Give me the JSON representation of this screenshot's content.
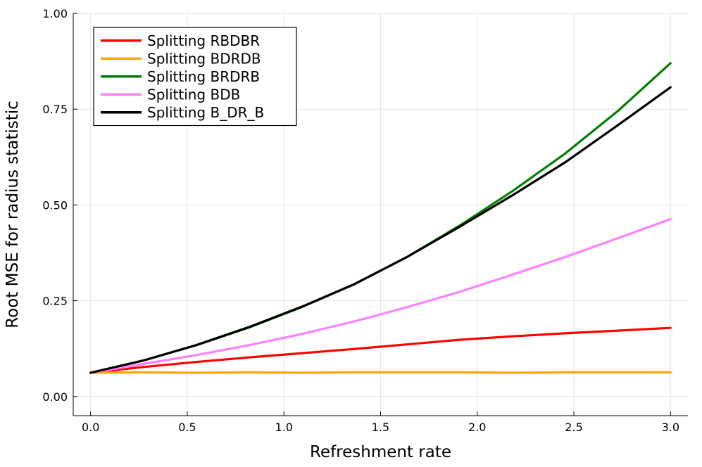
{
  "chart_data": {
    "type": "line",
    "title": "",
    "xlabel": "Refreshment rate",
    "ylabel": "Root MSE for radius statistic",
    "xlim": [
      -0.09,
      3.09
    ],
    "ylim": [
      -0.05,
      1.0
    ],
    "xticks": [
      0.0,
      0.5,
      1.0,
      1.5,
      2.0,
      2.5,
      3.0
    ],
    "xtick_labels": [
      "0.0",
      "0.5",
      "1.0",
      "1.5",
      "2.0",
      "2.5",
      "3.0"
    ],
    "yticks": [
      0.0,
      0.25,
      0.5,
      0.75,
      1.0
    ],
    "ytick_labels": [
      "0.00",
      "0.25",
      "0.50",
      "0.75",
      "1.00"
    ],
    "grid": true,
    "legend_position": "top-left",
    "x": [
      0.0,
      0.2727,
      0.5455,
      0.8182,
      1.0909,
      1.3636,
      1.6364,
      1.9091,
      2.1818,
      2.4545,
      2.7273,
      3.0
    ],
    "series": [
      {
        "name": "Splitting RBDBR",
        "color": "#ff0000",
        "values": [
          0.062,
          0.077,
          0.09,
          0.102,
          0.113,
          0.124,
          0.136,
          0.148,
          0.157,
          0.165,
          0.172,
          0.179
        ]
      },
      {
        "name": "Splitting BDRDB",
        "color": "#ffa500",
        "values": [
          0.062,
          0.063,
          0.062,
          0.063,
          0.062,
          0.063,
          0.063,
          0.063,
          0.062,
          0.063,
          0.063,
          0.063
        ]
      },
      {
        "name": "Splitting BRDRB",
        "color": "#008000",
        "values": [
          0.062,
          0.094,
          0.134,
          0.18,
          0.233,
          0.293,
          0.364,
          0.446,
          0.536,
          0.634,
          0.745,
          0.87
        ]
      },
      {
        "name": "Splitting BDB",
        "color": "#ff80ff",
        "values": [
          0.062,
          0.085,
          0.108,
          0.134,
          0.163,
          0.196,
          0.233,
          0.273,
          0.318,
          0.364,
          0.413,
          0.463
        ]
      },
      {
        "name": "Splitting B_DR_B",
        "color": "#000000",
        "values": [
          0.062,
          0.094,
          0.134,
          0.181,
          0.234,
          0.293,
          0.364,
          0.443,
          0.525,
          0.611,
          0.708,
          0.807
        ]
      }
    ]
  }
}
